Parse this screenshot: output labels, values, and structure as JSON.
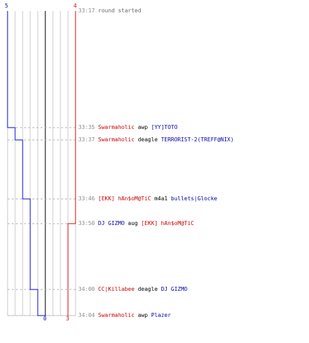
{
  "colors": {
    "ct": "#0000cc",
    "t": "#dd0000",
    "grid": "#c8c8c8",
    "dash": "#b0b0b0",
    "center": "#777777"
  },
  "scores": {
    "ct_start": "5",
    "t_start": "4",
    "ct_end": "0",
    "t_end": "3"
  },
  "events": [
    {
      "time": "33:17",
      "kind": "info",
      "text": "round started"
    },
    {
      "time": "33:35",
      "kind": "kill",
      "killer": "Swarmaholic",
      "killer_team": "t",
      "weapon": "awp",
      "victim": "[YY]TOTO",
      "victim_team": "ct",
      "ct_alive": 4,
      "t_alive": 4
    },
    {
      "time": "33:37",
      "kind": "kill",
      "killer": "Swarmaholic",
      "killer_team": "t",
      "weapon": "deagle",
      "victim": "TERRORIST-2(TREFF@NIX)",
      "victim_team": "ct",
      "ct_alive": 3,
      "t_alive": 4
    },
    {
      "time": "33:46",
      "kind": "kill",
      "killer": "[EKK] hAn$oM@TiC",
      "killer_team": "t",
      "weapon": "m4a1",
      "victim": "bullets|Glocke",
      "victim_team": "ct",
      "ct_alive": 2,
      "t_alive": 4
    },
    {
      "time": "33:50",
      "kind": "kill",
      "killer": "DJ GIZMO",
      "killer_team": "ct",
      "weapon": "aug",
      "victim": "[EKK] hAn$oM@TiC",
      "victim_team": "t",
      "ct_alive": 2,
      "t_alive": 3
    },
    {
      "time": "34:00",
      "kind": "kill",
      "killer": "CC|Killabee",
      "killer_team": "t",
      "weapon": "deagle",
      "victim": "DJ GIZMO",
      "victim_team": "ct",
      "ct_alive": 1,
      "t_alive": 3
    },
    {
      "time": "34:04",
      "kind": "kill",
      "killer": "Swarmaholic",
      "killer_team": "t",
      "weapon": "awp",
      "victim": "Plazer",
      "victim_team": "ct",
      "ct_alive": 0,
      "t_alive": 3
    }
  ]
}
